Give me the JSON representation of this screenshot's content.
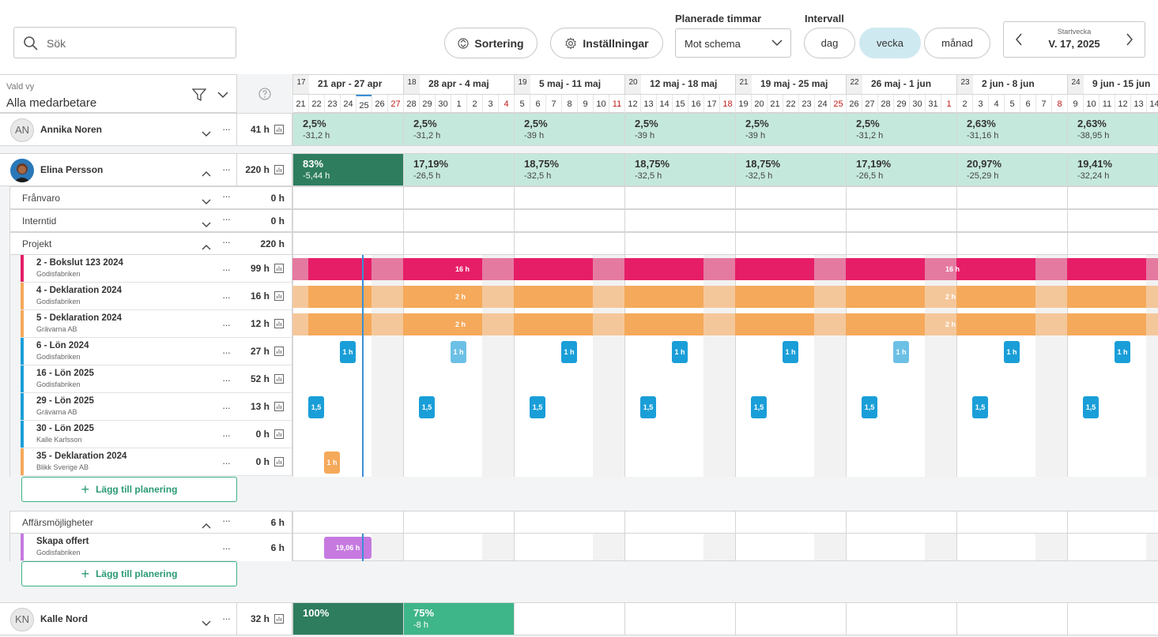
{
  "toolbar": {
    "search_placeholder": "Sök",
    "sort_label": "Sortering",
    "settings_label": "Inställningar",
    "planned_label": "Planerade timmar",
    "planned_value": "Mot schema",
    "interval_label": "Intervall",
    "interval_options": [
      "dag",
      "vecka",
      "månad"
    ],
    "interval_selected": "vecka",
    "startweek_label": "Startvecka",
    "startweek_value": "V. 17, 2025"
  },
  "view": {
    "label": "Vald vy",
    "value": "Alla medarbetare"
  },
  "calendar": {
    "weeks": [
      {
        "num": "17",
        "range": "21 apr - 27 apr"
      },
      {
        "num": "18",
        "range": "28 apr - 4 maj"
      },
      {
        "num": "19",
        "range": "5 maj - 11 maj"
      },
      {
        "num": "20",
        "range": "12 maj - 18 maj"
      },
      {
        "num": "21",
        "range": "19 maj - 25 maj"
      },
      {
        "num": "22",
        "range": "26 maj - 1 jun"
      },
      {
        "num": "23",
        "range": "2 jun - 8 jun"
      },
      {
        "num": "24",
        "range": "9 jun - 15 jun"
      }
    ],
    "days": [
      "21",
      "22",
      "23",
      "24",
      "25",
      "26",
      "27",
      "28",
      "29",
      "30",
      "1",
      "2",
      "3",
      "4",
      "5",
      "6",
      "7",
      "8",
      "9",
      "10",
      "11",
      "12",
      "13",
      "14",
      "15",
      "16",
      "17",
      "18",
      "19",
      "20",
      "21",
      "22",
      "23",
      "24",
      "25",
      "26",
      "27",
      "28",
      "29",
      "30",
      "31",
      "1",
      "2",
      "3",
      "4",
      "5",
      "6",
      "7",
      "8",
      "9",
      "10",
      "11",
      "12",
      "13",
      "14"
    ],
    "red_days": [
      6,
      13,
      20,
      27,
      34,
      41,
      48
    ],
    "today_index": 4
  },
  "people": [
    {
      "initials": "AN",
      "name": "Annika Noren",
      "hours": "41 h",
      "cells": [
        {
          "pct": "2,5%",
          "dh": "-31,2 h"
        },
        {
          "pct": "2,5%",
          "dh": "-31,2 h"
        },
        {
          "pct": "2,5%",
          "dh": "-39 h"
        },
        {
          "pct": "2,5%",
          "dh": "-39 h"
        },
        {
          "pct": "2,5%",
          "dh": "-39 h"
        },
        {
          "pct": "2,5%",
          "dh": "-31,2 h"
        },
        {
          "pct": "2,63%",
          "dh": "-31,16 h"
        },
        {
          "pct": "2,63%",
          "dh": "-38,95 h"
        }
      ]
    },
    {
      "name": "Elina Persson",
      "hours": "220 h",
      "cells": [
        {
          "pct": "83%",
          "dh": "-5,44 h"
        },
        {
          "pct": "17,19%",
          "dh": "-26,5 h"
        },
        {
          "pct": "18,75%",
          "dh": "-32,5 h"
        },
        {
          "pct": "18,75%",
          "dh": "-32,5 h"
        },
        {
          "pct": "18,75%",
          "dh": "-32,5 h"
        },
        {
          "pct": "17,19%",
          "dh": "-26,5 h"
        },
        {
          "pct": "20,97%",
          "dh": "-25,29 h"
        },
        {
          "pct": "19,41%",
          "dh": "-32,24 h"
        }
      ]
    },
    {
      "initials": "KN",
      "name": "Kalle Nord",
      "hours": "32 h",
      "cells": [
        {
          "pct": "100%",
          "dh": ""
        },
        {
          "pct": "75%",
          "dh": "-8 h"
        }
      ]
    }
  ],
  "categories": [
    {
      "name": "Frånvaro",
      "hours": "0 h"
    },
    {
      "name": "Interntid",
      "hours": "0 h"
    },
    {
      "name": "Projekt",
      "hours": "220 h"
    },
    {
      "name": "Affärsmöjligheter",
      "hours": "6 h"
    }
  ],
  "projects": [
    {
      "title": "2 - Bokslut 123 2024",
      "client": "Godisfabriken",
      "hours": "99 h",
      "color": "#e61e68"
    },
    {
      "title": "4 - Deklaration 2024",
      "client": "Godisfabriken",
      "hours": "16 h",
      "color": "#f5a95a"
    },
    {
      "title": "5 - Deklaration 2024",
      "client": "Grävarna AB",
      "hours": "12 h",
      "color": "#f5a95a"
    },
    {
      "title": "6 - Lön 2024",
      "client": "Godisfabriken",
      "hours": "27 h",
      "color": "#1a9ed8"
    },
    {
      "title": "16 - Lön 2025",
      "client": "Godisfabriken",
      "hours": "52 h",
      "color": "#1a9ed8"
    },
    {
      "title": "29 - Lön 2025",
      "client": "Grävarna AB",
      "hours": "13 h",
      "color": "#1a9ed8"
    },
    {
      "title": "30 - Lön 2025",
      "client": "Kalle Karlsson",
      "hours": "0 h",
      "color": "#1a9ed8"
    },
    {
      "title": "35 - Deklaration 2024",
      "client": "Blikk Sverige AB",
      "hours": "0 h",
      "color": "#f5a95a"
    }
  ],
  "opportunity": {
    "title": "Skapa offert",
    "client": "Godisfabriken",
    "hours": "6 h",
    "color": "#c67ae0",
    "chip": "19,06 h"
  },
  "add_label": "Lägg till planering",
  "chip_labels": {
    "p16": "16 h",
    "p2": "2 h",
    "h1": "1 h",
    "h15": "1,5",
    "h1b": "1 h"
  }
}
